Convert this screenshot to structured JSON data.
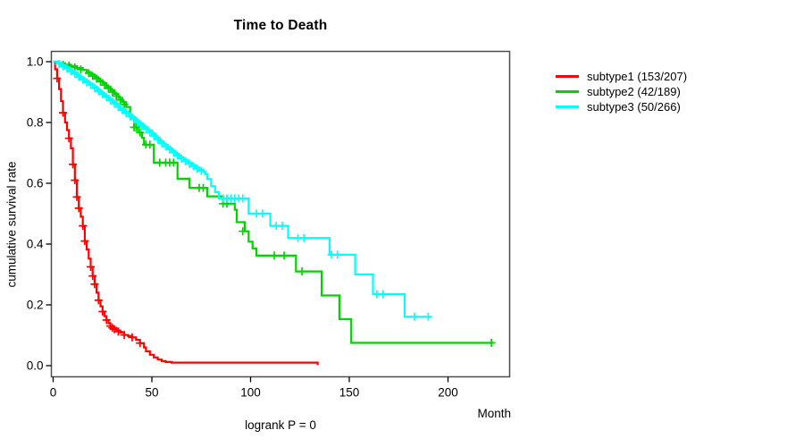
{
  "chart_data": {
    "type": "line",
    "variant": "kaplan-meier-step",
    "title": "Time to Death",
    "xlabel": "Month",
    "ylabel": "cumulative survival rate",
    "footer": "logrank P = 0",
    "xlim": [
      0,
      231
    ],
    "ylim": [
      0,
      1
    ],
    "x_ticks": [
      0,
      50,
      100,
      150,
      200
    ],
    "y_ticks": [
      "0.0",
      "0.2",
      "0.4",
      "0.6",
      "0.8",
      "1.0"
    ],
    "grid": false,
    "legend_position": "right-outside",
    "series": [
      {
        "id": "subtype1",
        "label": "subtype1 (153/207)",
        "color": "#ff0000",
        "end_month": 134.5,
        "points": [
          [
            0,
            1.0
          ],
          [
            1,
            0.975
          ],
          [
            2,
            0.945
          ],
          [
            3,
            0.91
          ],
          [
            4,
            0.87
          ],
          [
            5,
            0.832
          ],
          [
            6,
            0.8
          ],
          [
            7,
            0.775
          ],
          [
            8,
            0.748
          ],
          [
            9,
            0.715
          ],
          [
            10,
            0.662
          ],
          [
            11,
            0.61
          ],
          [
            12,
            0.555
          ],
          [
            13,
            0.518
          ],
          [
            14,
            0.49
          ],
          [
            15,
            0.46
          ],
          [
            16,
            0.41
          ],
          [
            17,
            0.382
          ],
          [
            18,
            0.352
          ],
          [
            19,
            0.325
          ],
          [
            20,
            0.295
          ],
          [
            21,
            0.268
          ],
          [
            22,
            0.24
          ],
          [
            23,
            0.215
          ],
          [
            24,
            0.195
          ],
          [
            25,
            0.178
          ],
          [
            26,
            0.163
          ],
          [
            27,
            0.15
          ],
          [
            28,
            0.139
          ],
          [
            29,
            0.13
          ],
          [
            30,
            0.124
          ],
          [
            32,
            0.116
          ],
          [
            34,
            0.109
          ],
          [
            36,
            0.101
          ],
          [
            38,
            0.097
          ],
          [
            40,
            0.093
          ],
          [
            42,
            0.085
          ],
          [
            44,
            0.074
          ],
          [
            46,
            0.06
          ],
          [
            47,
            0.047
          ],
          [
            49,
            0.036
          ],
          [
            51,
            0.027
          ],
          [
            53,
            0.02
          ],
          [
            55,
            0.015
          ],
          [
            57,
            0.012
          ],
          [
            60,
            0.01
          ],
          [
            134,
            0.005
          ]
        ],
        "censors": [
          [
            2,
            0.945
          ],
          [
            5,
            0.832
          ],
          [
            8,
            0.748
          ],
          [
            10,
            0.662
          ],
          [
            11,
            0.61
          ],
          [
            12,
            0.555
          ],
          [
            13,
            0.518
          ],
          [
            15,
            0.46
          ],
          [
            16,
            0.41
          ],
          [
            19,
            0.325
          ],
          [
            20,
            0.295
          ],
          [
            21,
            0.268
          ],
          [
            23,
            0.215
          ],
          [
            25,
            0.178
          ],
          [
            27,
            0.15
          ],
          [
            29,
            0.13
          ],
          [
            30,
            0.124
          ],
          [
            31,
            0.12
          ],
          [
            33,
            0.112
          ],
          [
            36,
            0.101
          ],
          [
            40,
            0.093
          ],
          [
            44,
            0.074
          ]
        ]
      },
      {
        "id": "subtype2",
        "label": "subtype2 (42/189)",
        "color": "#00d300",
        "end_month": 223,
        "points": [
          [
            0,
            1.0
          ],
          [
            3,
            0.995
          ],
          [
            6,
            0.99
          ],
          [
            9,
            0.985
          ],
          [
            12,
            0.979
          ],
          [
            15,
            0.973
          ],
          [
            17,
            0.966
          ],
          [
            19,
            0.958
          ],
          [
            21,
            0.949
          ],
          [
            23,
            0.939
          ],
          [
            25,
            0.929
          ],
          [
            27,
            0.918
          ],
          [
            29,
            0.906
          ],
          [
            31,
            0.894
          ],
          [
            33,
            0.881
          ],
          [
            35,
            0.867
          ],
          [
            37,
            0.851
          ],
          [
            39,
            0.817
          ],
          [
            41,
            0.784
          ],
          [
            43,
            0.767
          ],
          [
            45,
            0.75
          ],
          [
            46,
            0.727
          ],
          [
            51,
            0.668
          ],
          [
            63,
            0.615
          ],
          [
            69,
            0.585
          ],
          [
            78,
            0.557
          ],
          [
            86,
            0.533
          ],
          [
            92,
            0.513
          ],
          [
            93,
            0.472
          ],
          [
            97,
            0.442
          ],
          [
            99,
            0.408
          ],
          [
            101,
            0.386
          ],
          [
            103,
            0.362
          ],
          [
            123,
            0.31
          ],
          [
            136,
            0.231
          ],
          [
            145,
            0.153
          ],
          [
            151,
            0.075
          ]
        ],
        "censors": [
          [
            5,
            0.99
          ],
          [
            8,
            0.987
          ],
          [
            11,
            0.981
          ],
          [
            14,
            0.974
          ],
          [
            18,
            0.962
          ],
          [
            20,
            0.953
          ],
          [
            22,
            0.944
          ],
          [
            24,
            0.934
          ],
          [
            26,
            0.923
          ],
          [
            28,
            0.912
          ],
          [
            30,
            0.9
          ],
          [
            32,
            0.887
          ],
          [
            34,
            0.874
          ],
          [
            36,
            0.859
          ],
          [
            41,
            0.784
          ],
          [
            42,
            0.784
          ],
          [
            44,
            0.767
          ],
          [
            47,
            0.727
          ],
          [
            49,
            0.727
          ],
          [
            54,
            0.668
          ],
          [
            57,
            0.668
          ],
          [
            59,
            0.668
          ],
          [
            61,
            0.668
          ],
          [
            74,
            0.585
          ],
          [
            76,
            0.585
          ],
          [
            86,
            0.533
          ],
          [
            88,
            0.533
          ],
          [
            96,
            0.442
          ],
          [
            112,
            0.362
          ],
          [
            117,
            0.362
          ],
          [
            126,
            0.31
          ],
          [
            222,
            0.075
          ]
        ]
      },
      {
        "id": "subtype3",
        "label": "subtype3 (50/266)",
        "color": "#00ffff",
        "end_month": 191,
        "points": [
          [
            0,
            1.0
          ],
          [
            2,
            0.996
          ],
          [
            4,
            0.989
          ],
          [
            6,
            0.981
          ],
          [
            8,
            0.973
          ],
          [
            10,
            0.964
          ],
          [
            12,
            0.955
          ],
          [
            14,
            0.946
          ],
          [
            16,
            0.937
          ],
          [
            18,
            0.928
          ],
          [
            20,
            0.918
          ],
          [
            22,
            0.908
          ],
          [
            24,
            0.898
          ],
          [
            26,
            0.888
          ],
          [
            28,
            0.878
          ],
          [
            30,
            0.868
          ],
          [
            32,
            0.857
          ],
          [
            34,
            0.846
          ],
          [
            36,
            0.836
          ],
          [
            38,
            0.826
          ],
          [
            40,
            0.815
          ],
          [
            42,
            0.805
          ],
          [
            44,
            0.795
          ],
          [
            46,
            0.784
          ],
          [
            48,
            0.773
          ],
          [
            50,
            0.762
          ],
          [
            52,
            0.75
          ],
          [
            54,
            0.738
          ],
          [
            56,
            0.727
          ],
          [
            58,
            0.716
          ],
          [
            60,
            0.706
          ],
          [
            62,
            0.696
          ],
          [
            64,
            0.686
          ],
          [
            66,
            0.677
          ],
          [
            68,
            0.668
          ],
          [
            70,
            0.66
          ],
          [
            72,
            0.652
          ],
          [
            74,
            0.645
          ],
          [
            76,
            0.638
          ],
          [
            77,
            0.629
          ],
          [
            78,
            0.614
          ],
          [
            80,
            0.59
          ],
          [
            82,
            0.571
          ],
          [
            84,
            0.55
          ],
          [
            99,
            0.5
          ],
          [
            110,
            0.46
          ],
          [
            119,
            0.42
          ],
          [
            140,
            0.365
          ],
          [
            153,
            0.3
          ],
          [
            162,
            0.235
          ],
          [
            178,
            0.161
          ]
        ],
        "censors": [
          [
            3,
            0.992
          ],
          [
            5,
            0.985
          ],
          [
            7,
            0.977
          ],
          [
            9,
            0.968
          ],
          [
            11,
            0.96
          ],
          [
            13,
            0.95
          ],
          [
            15,
            0.941
          ],
          [
            17,
            0.932
          ],
          [
            19,
            0.923
          ],
          [
            21,
            0.913
          ],
          [
            23,
            0.903
          ],
          [
            25,
            0.893
          ],
          [
            27,
            0.883
          ],
          [
            29,
            0.873
          ],
          [
            31,
            0.862
          ],
          [
            33,
            0.851
          ],
          [
            35,
            0.841
          ],
          [
            37,
            0.831
          ],
          [
            39,
            0.82
          ],
          [
            41,
            0.81
          ],
          [
            43,
            0.8
          ],
          [
            45,
            0.789
          ],
          [
            47,
            0.778
          ],
          [
            49,
            0.767
          ],
          [
            51,
            0.756
          ],
          [
            53,
            0.744
          ],
          [
            55,
            0.732
          ],
          [
            57,
            0.721
          ],
          [
            59,
            0.711
          ],
          [
            61,
            0.701
          ],
          [
            63,
            0.691
          ],
          [
            65,
            0.681
          ],
          [
            67,
            0.672
          ],
          [
            69,
            0.664
          ],
          [
            71,
            0.656
          ],
          [
            73,
            0.648
          ],
          [
            75,
            0.641
          ],
          [
            86,
            0.55
          ],
          [
            88,
            0.55
          ],
          [
            90,
            0.55
          ],
          [
            92,
            0.55
          ],
          [
            94,
            0.55
          ],
          [
            96,
            0.55
          ],
          [
            103,
            0.5
          ],
          [
            106,
            0.5
          ],
          [
            113,
            0.46
          ],
          [
            116,
            0.46
          ],
          [
            124,
            0.42
          ],
          [
            127,
            0.42
          ],
          [
            141,
            0.365
          ],
          [
            144,
            0.365
          ],
          [
            164,
            0.235
          ],
          [
            167,
            0.235
          ],
          [
            183,
            0.161
          ],
          [
            190,
            0.161
          ]
        ]
      }
    ]
  }
}
